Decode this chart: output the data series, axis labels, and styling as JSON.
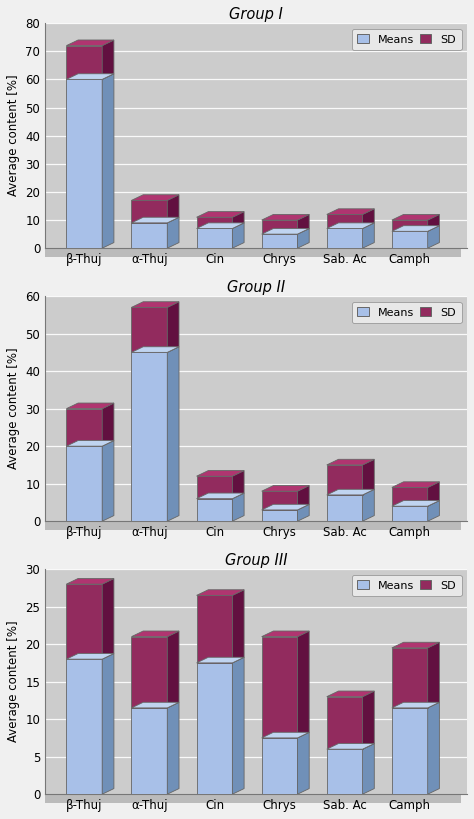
{
  "groups": [
    {
      "title": "Group I",
      "ylim": [
        0,
        80
      ],
      "yticks": [
        0,
        10,
        20,
        30,
        40,
        50,
        60,
        70,
        80
      ],
      "categories": [
        "β-Thuj",
        "α-Thuj",
        "Cin",
        "Chrys",
        "Sab. Ac",
        "Camph"
      ],
      "means": [
        60,
        9,
        7,
        5,
        7,
        6
      ],
      "sds": [
        12,
        8,
        4,
        5,
        5,
        4
      ]
    },
    {
      "title": "Group II",
      "ylim": [
        0,
        60
      ],
      "yticks": [
        0,
        10,
        20,
        30,
        40,
        50,
        60
      ],
      "categories": [
        "β-Thuj",
        "α-Thuj",
        "Cin",
        "Chrys",
        "Sab. Ac",
        "Camph"
      ],
      "means": [
        20,
        45,
        6,
        3,
        7,
        4
      ],
      "sds": [
        10,
        12,
        6,
        5,
        8,
        5
      ]
    },
    {
      "title": "Group III",
      "ylim": [
        0,
        30
      ],
      "yticks": [
        0,
        5,
        10,
        15,
        20,
        25,
        30
      ],
      "categories": [
        "β-Thuj",
        "α-Thuj",
        "Cin",
        "Chrys",
        "Sab. Ac",
        "Camph"
      ],
      "means": [
        18,
        11.5,
        17.5,
        7.5,
        6,
        11.5
      ],
      "sds": [
        10,
        9.5,
        9,
        13.5,
        7,
        8
      ]
    }
  ],
  "means_color": "#A8C0E8",
  "means_color_dark": "#7090B8",
  "means_color_top": "#C0D4F0",
  "sd_color": "#922B5E",
  "sd_color_dark": "#621040",
  "sd_color_top": "#B03570",
  "bar_edge_color": "#666666",
  "plot_bg_color": "#CCCCCC",
  "floor_color": "#BBBBBB",
  "grid_color": "#BBBBBB",
  "ylabel": "Average content [%]",
  "depth": 0.06,
  "bar_width": 0.55
}
